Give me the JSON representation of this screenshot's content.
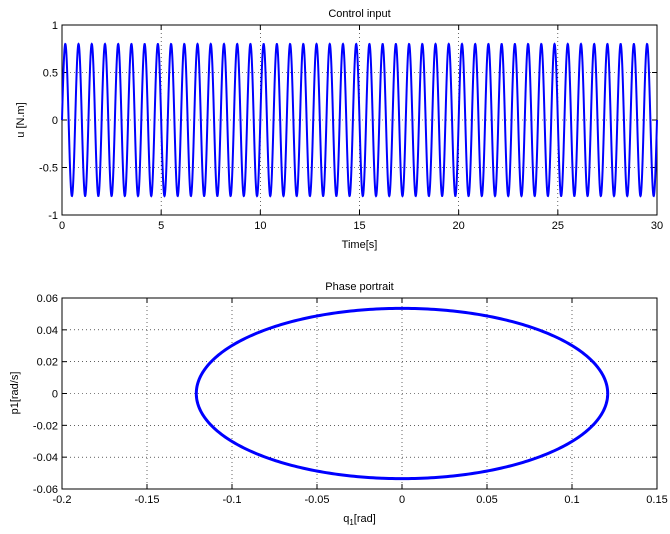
{
  "chart_data": [
    {
      "type": "line",
      "title": "Control input",
      "xlabel": "Time[s]",
      "ylabel": "u [N.m]",
      "xlim": [
        0,
        30
      ],
      "ylim": [
        -1,
        1
      ],
      "xticks": [
        0,
        5,
        10,
        15,
        20,
        25,
        30
      ],
      "xtick_labels": [
        "0",
        "5",
        "10",
        "15",
        "20",
        "25",
        "30"
      ],
      "yticks": [
        -1,
        -0.5,
        0,
        0.5,
        1
      ],
      "ytick_labels": [
        "-1",
        "-0.5",
        "0",
        "0.5",
        "1"
      ],
      "grid": true,
      "series": [
        {
          "function": "u(t) = 0.8 sin(2π·1.5·t)",
          "amplitude": 0.8,
          "frequency_hz": 1.5,
          "t_start": 0,
          "t_end": 30,
          "color": "#0000ff"
        }
      ]
    },
    {
      "type": "line",
      "title": "Phase portrait",
      "xlabel": "q",
      "xlabel_sub": "1",
      "xlabel_suffix": "[rad]",
      "ylabel": "p1[rad/s]",
      "xlim": [
        -0.2,
        0.15
      ],
      "ylim": [
        -0.06,
        0.06
      ],
      "xticks": [
        -0.2,
        -0.15,
        -0.1,
        -0.05,
        0,
        0.05,
        0.1,
        0.15
      ],
      "xtick_labels": [
        "-0.2",
        "-0.15",
        "-0.1",
        "-0.05",
        "0",
        "0.05",
        "0.1",
        "0.15"
      ],
      "yticks": [
        -0.06,
        -0.04,
        -0.02,
        0,
        0.02,
        0.04,
        0.06
      ],
      "ytick_labels": [
        "-0.06",
        "-0.04",
        "-0.02",
        "0",
        "0.02",
        "0.04",
        "0.06"
      ],
      "grid": true,
      "series": [
        {
          "shape": "ellipse",
          "center_x": 0,
          "center_y": 0,
          "radius_x": 0.121,
          "radius_y": 0.0535,
          "color": "#0000ff"
        }
      ]
    }
  ]
}
